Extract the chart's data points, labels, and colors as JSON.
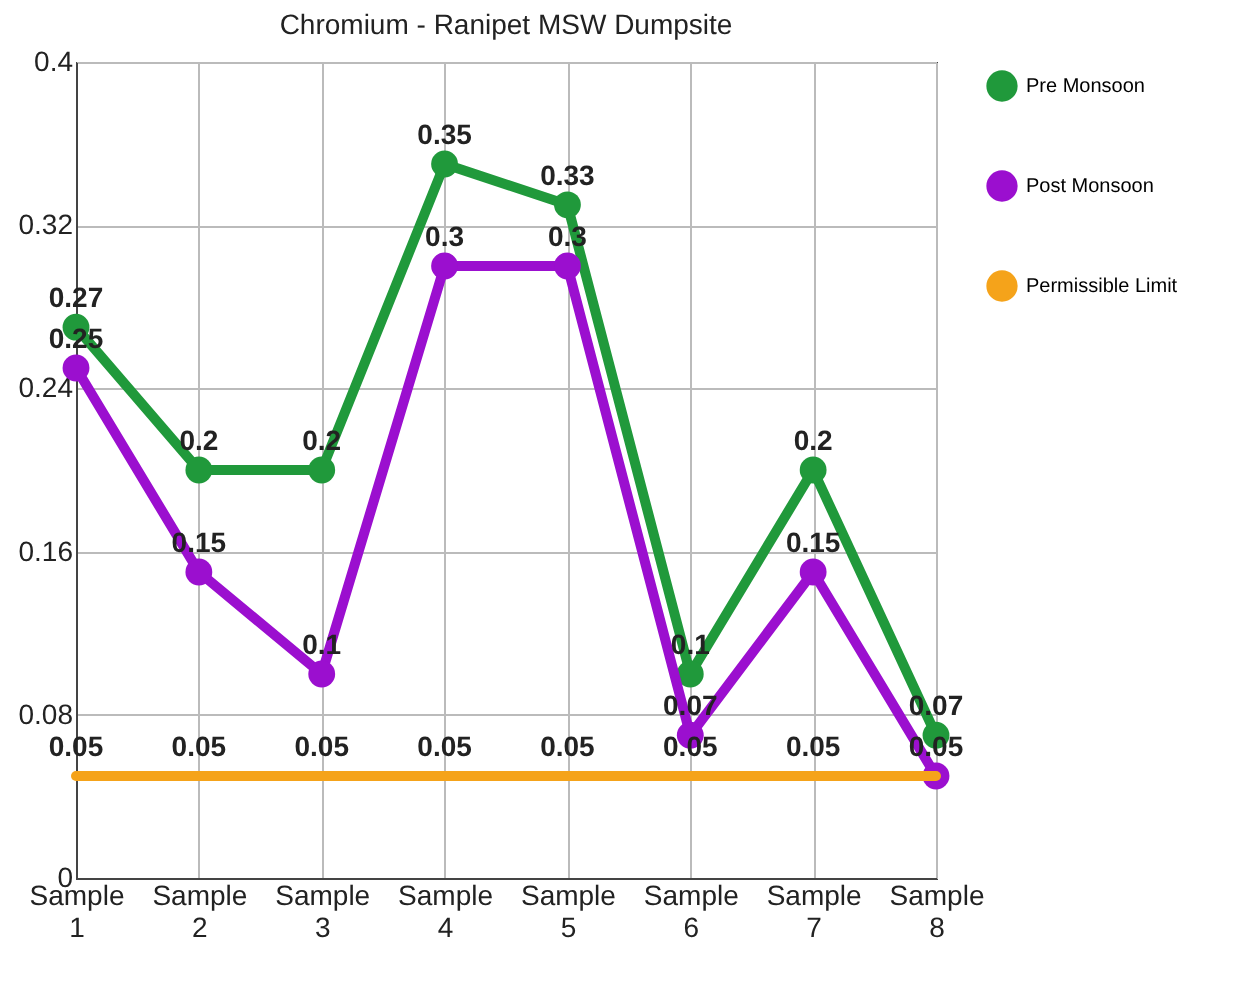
{
  "chart_data": {
    "type": "line",
    "title": "Chromium - Ranipet MSW Dumpsite",
    "categories": [
      "Sample 1",
      "Sample 2",
      "Sample 3",
      "Sample 4",
      "Sample 5",
      "Sample 6",
      "Sample 7",
      "Sample 8"
    ],
    "series": [
      {
        "name": "Pre Monsoon",
        "color": "#20993b",
        "marker": "circle",
        "values": [
          0.27,
          0.2,
          0.2,
          0.35,
          0.33,
          0.1,
          0.2,
          0.07
        ],
        "value_labels": [
          "0.27",
          "0.2",
          "0.2",
          "0.35",
          "0.33",
          "0.1",
          "0.2",
          "0.07"
        ]
      },
      {
        "name": "Post Monsoon",
        "color": "#9b0fcf",
        "marker": "circle",
        "values": [
          0.25,
          0.15,
          0.1,
          0.3,
          0.3,
          0.07,
          0.15,
          0.05
        ],
        "value_labels": [
          "0.25",
          "0.15",
          "0.1",
          "0.3",
          "0.3",
          "0.07",
          "0.15",
          null
        ]
      },
      {
        "name": "Permissible Limit",
        "color": "#f5a31a",
        "marker": "none",
        "values": [
          0.05,
          0.05,
          0.05,
          0.05,
          0.05,
          0.05,
          0.05,
          0.05
        ],
        "value_labels": [
          "0.05",
          "0.05",
          "0.05",
          "0.05",
          "0.05",
          "0.05",
          "0.05",
          "0.05"
        ]
      }
    ],
    "ylim": [
      0,
      0.4
    ],
    "yticks": [
      {
        "value": 0,
        "label": "0"
      },
      0.08,
      0.16,
      0.24,
      0.32,
      {
        "value": 0.4,
        "label": "0.4"
      }
    ],
    "grid": true,
    "legend": "right",
    "line_style": "solid"
  }
}
